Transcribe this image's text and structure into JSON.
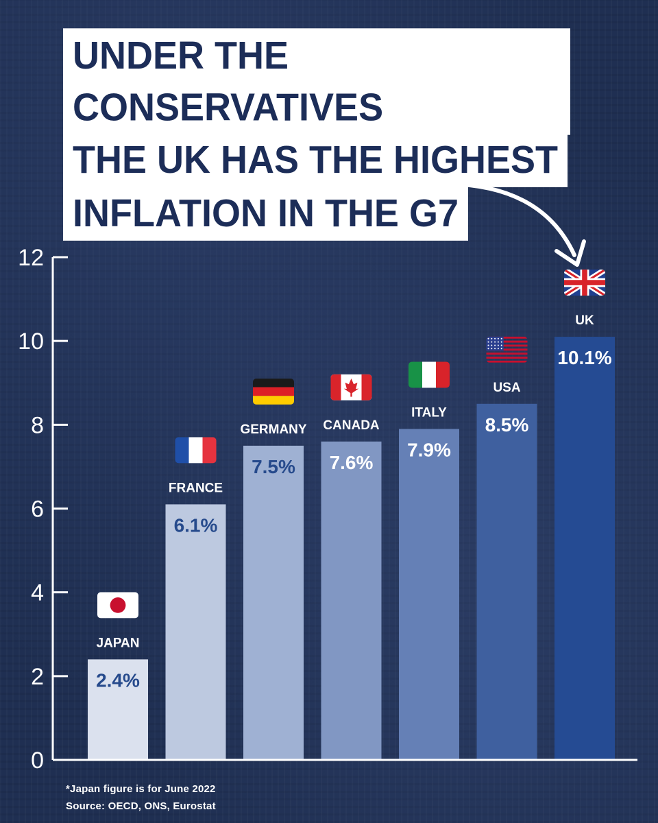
{
  "headline": {
    "lines": [
      "UNDER THE CONSERVATIVES",
      "THE UK HAS THE HIGHEST",
      "INFLATION IN THE G7"
    ]
  },
  "chart_data": {
    "type": "bar",
    "title": "UNDER THE CONSERVATIVES THE UK HAS THE HIGHEST INFLATION IN THE G7",
    "xlabel": "",
    "ylabel": "",
    "ylim": [
      0,
      12
    ],
    "yticks": [
      "0",
      "2",
      "4",
      "6",
      "8",
      "10",
      "12"
    ],
    "categories": [
      "JAPAN",
      "FRANCE",
      "GERMANY",
      "CANADA",
      "ITALY",
      "USA",
      "UK"
    ],
    "values": [
      2.4,
      6.1,
      7.5,
      7.6,
      7.9,
      8.5,
      10.1
    ],
    "value_labels": [
      "2.4%",
      "6.1%",
      "7.5%",
      "7.6%",
      "7.9%",
      "8.5%",
      "10.1%"
    ],
    "flags": [
      "japan-flag",
      "france-flag",
      "germany-flag",
      "canada-flag",
      "italy-flag",
      "usa-flag",
      "uk-flag"
    ],
    "bar_colors": [
      "#dbe1ee",
      "#bdc9e0",
      "#9fb1d3",
      "#8197c3",
      "#6580b6",
      "#3f609f",
      "#254b93"
    ],
    "label_colors": [
      "#264a8c",
      "#264a8c",
      "#264a8c",
      "#ffffff",
      "#ffffff",
      "#ffffff",
      "#ffffff"
    ],
    "grid": false
  },
  "footnote": {
    "note": "*Japan figure is for June 2022",
    "source": "Source: OECD, ONS, Eurostat"
  },
  "colors": {
    "background": "#1f2f52",
    "headline_bg": "#ffffff",
    "headline_text": "#1c2d58",
    "axis": "#ffffff"
  }
}
